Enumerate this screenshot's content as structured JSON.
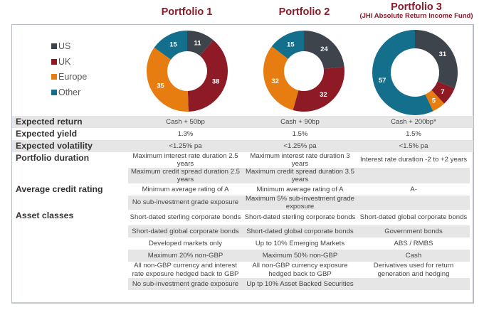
{
  "chart_data": [
    {
      "type": "pie",
      "variant": "donut",
      "title": "Portfolio 1",
      "subtitle": "",
      "categories": [
        "US",
        "UK",
        "Europe",
        "Other"
      ],
      "values": [
        11,
        38,
        35,
        15
      ],
      "colors": [
        "#3d444b",
        "#8e1a26",
        "#e77d11",
        "#136f8c"
      ]
    },
    {
      "type": "pie",
      "variant": "donut",
      "title": "Portfolio 2",
      "subtitle": "",
      "categories": [
        "US",
        "UK",
        "Europe",
        "Other"
      ],
      "values": [
        24,
        32,
        32,
        15
      ],
      "colors": [
        "#3d444b",
        "#8e1a26",
        "#e77d11",
        "#136f8c"
      ]
    },
    {
      "type": "pie",
      "variant": "donut",
      "title": "Portfolio 3",
      "subtitle": "(JHI Absolute Return Income Fund)",
      "categories": [
        "US",
        "UK",
        "Europe",
        "Other"
      ],
      "values": [
        31,
        7,
        5,
        57
      ],
      "colors": [
        "#3d444b",
        "#8e1a26",
        "#e77d11",
        "#136f8c"
      ]
    }
  ],
  "legend": [
    {
      "label": "US",
      "color": "#3d444b"
    },
    {
      "label": "UK",
      "color": "#8e1a26"
    },
    {
      "label": "Europe",
      "color": "#e77d11"
    },
    {
      "label": "Other",
      "color": "#136f8c"
    }
  ],
  "table": {
    "rows": [
      {
        "label": "Expected return",
        "cells": [
          "Cash + 50bp",
          "Cash + 90bp",
          "Cash + 200bp*"
        ],
        "shade": [
          true,
          true,
          true
        ],
        "full": true
      },
      {
        "label": "Expected yield",
        "cells": [
          "1.3%",
          "1.5%",
          "1.5%"
        ],
        "shade": [
          false,
          false,
          false
        ],
        "full": true
      },
      {
        "label": "Expected volatility",
        "cells": [
          "<1.25% pa",
          "<1.25% pa",
          "<1.5% pa"
        ],
        "shade": [
          true,
          true,
          true
        ],
        "full": true
      },
      {
        "label": "Portfolio duration",
        "cells": [
          "Maximum interest rate duration 2.5 years",
          "Maximum interest rate duration 3 years",
          "Interest rate duration -2 to +2 years"
        ],
        "shade": [
          false,
          false,
          false
        ]
      },
      {
        "label": "",
        "cells": [
          "Maximum credit spread duration 2.5 years",
          "Maximum credit spread duration 3.5 years",
          ""
        ],
        "shade": [
          true,
          true,
          true
        ]
      },
      {
        "label": "Average credit rating",
        "cells": [
          "Minimum average rating of A",
          "Minimum average rating of A",
          "A-"
        ],
        "shade": [
          false,
          false,
          false
        ]
      },
      {
        "label": "",
        "cells": [
          "No sub-investment grade exposure",
          "Maximum 5% sub-investment grade exposure",
          ""
        ],
        "shade": [
          true,
          true,
          true
        ]
      },
      {
        "label": "Asset classes",
        "cells": [
          "Short-dated sterling corporate bonds",
          "Short-dated sterling corporate bonds",
          "Short-dated global corporate bonds"
        ],
        "shade": [
          false,
          false,
          false
        ]
      },
      {
        "label": "",
        "cells": [
          "Short-dated global corporate bonds",
          "Short-dated global corporate bonds",
          "Government bonds"
        ],
        "shade": [
          true,
          true,
          true
        ]
      },
      {
        "label": "",
        "cells": [
          "Developed markets only",
          "Up to 10% Emerging Markets",
          "ABS / RMBS"
        ],
        "shade": [
          false,
          false,
          false
        ]
      },
      {
        "label": "",
        "cells": [
          "Maximum 20% non-GBP",
          "Maximum 50% non-GBP",
          "Cash"
        ],
        "shade": [
          true,
          true,
          true
        ]
      },
      {
        "label": "",
        "cells": [
          "All non-GBP currency and interest rate exposure hedged back to GBP",
          "All non-GBP currency exposure hedged back to GBP",
          "Derivatives used for return generation and hedging"
        ],
        "shade": [
          false,
          false,
          false
        ]
      },
      {
        "label": "",
        "cells": [
          "No sub-investment grade exposure",
          "Up tp 10% Asset Backed Securities",
          ""
        ],
        "shade": [
          true,
          true,
          true
        ]
      }
    ]
  }
}
